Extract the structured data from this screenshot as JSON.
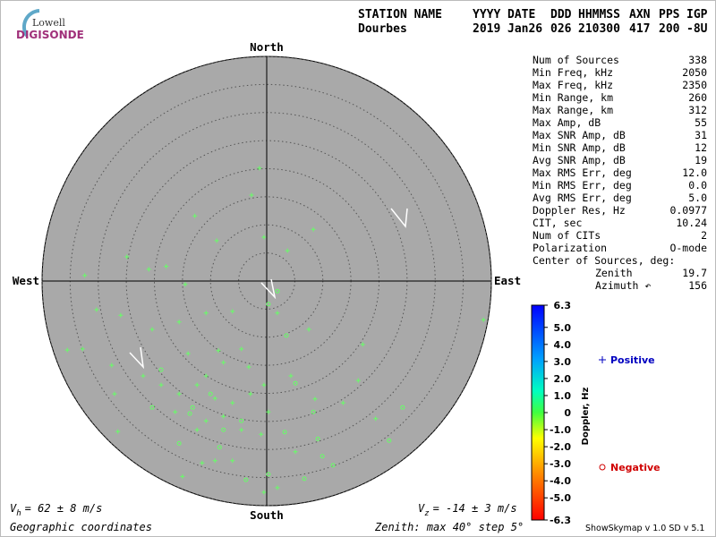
{
  "logo": {
    "top": "Lowell",
    "bottom": "DIGISONDE"
  },
  "header": {
    "columns": [
      "STATION NAME",
      "YYYY",
      "DATE",
      "DDD",
      "HHMMSS",
      "AXN",
      "PPS",
      "IGP"
    ],
    "values": [
      "Dourbes",
      "2019",
      "Jan26",
      "026",
      "210300",
      "417",
      "200",
      "-8U"
    ]
  },
  "stats": [
    [
      "Num of Sources",
      "338"
    ],
    [
      "Min Freq, kHz",
      "2050"
    ],
    [
      "Max Freq, kHz",
      "2350"
    ],
    [
      "Min Range, km",
      "260"
    ],
    [
      "Max Range, km",
      "312"
    ],
    [
      "Max Amp, dB",
      "55"
    ],
    [
      "Max SNR Amp, dB",
      "31"
    ],
    [
      "Min SNR Amp, dB",
      "12"
    ],
    [
      "Avg SNR Amp, dB",
      "19"
    ],
    [
      "Max RMS Err, deg",
      "12.0"
    ],
    [
      "Min RMS Err, deg",
      "0.0"
    ],
    [
      "Avg RMS Err, deg",
      "5.0"
    ],
    [
      "Doppler Res, Hz",
      "0.0977"
    ],
    [
      "CIT, sec",
      "10.24"
    ],
    [
      "Num of CITs",
      "2"
    ],
    [
      "Polarization",
      "O-mode"
    ]
  ],
  "center": {
    "title": "Center of Sources, deg:",
    "rows": [
      [
        "Zenith",
        "19.7"
      ],
      [
        "Azimuth ↶",
        "156"
      ]
    ]
  },
  "footer": {
    "vh_symbol": "V",
    "vh_sub": "h",
    "vh_text": "= 62 ± 8 m/s",
    "vz_symbol": "V",
    "vz_sub": "z",
    "vz_text": "= -14 ± 3 m/s",
    "coords": "Geographic coordinates",
    "zenith": "Zenith: max 40°  step 5°",
    "version": "ShowSkymap v 1.0   SD v 5.1"
  },
  "chart_data": {
    "type": "skymap",
    "directions": {
      "north": "North",
      "south": "South",
      "east": "East",
      "west": "West"
    },
    "rlim": [
      0,
      40
    ],
    "rticks": [
      5,
      10,
      15,
      20,
      25,
      30,
      35,
      40
    ],
    "colorbar": {
      "label": "Doppler, Hz",
      "lim": [
        -6.3,
        6.3
      ],
      "ticks": [
        6.3,
        {
          "value": 5,
          "label": "5.0"
        },
        {
          "value": 4,
          "label": "4.0"
        },
        {
          "value": 3,
          "label": "3.0"
        },
        {
          "value": 2,
          "label": "2.0"
        },
        {
          "value": 1,
          "label": "1.0"
        },
        0,
        {
          "value": -1,
          "label": "-1.0"
        },
        {
          "value": -2,
          "label": "-2.0"
        },
        {
          "value": -3,
          "label": "-3.0"
        },
        {
          "value": -4,
          "label": "-4.0"
        },
        {
          "value": -5,
          "label": "-5.0"
        },
        -6.3
      ]
    },
    "series": [
      {
        "name": "Positive",
        "marker": "plus",
        "color": "#66ff66",
        "legend_color": "#0000c0",
        "x": [
          -1.3,
          -2.7,
          -12.8,
          -8.9,
          -0.5,
          3.7,
          8.3,
          -24.9,
          -32.4,
          -21.0,
          -17.9,
          -14.5,
          -30.3,
          -26.0,
          -20.4,
          -15.6,
          -10.8,
          -6.1,
          1.9,
          7.5,
          -32.8,
          -35.5,
          -27.6,
          -22.0,
          -18.8,
          -15.6,
          -12.4,
          -9.2,
          -6.1,
          -2.9,
          -0.5,
          -10.8,
          -7.7,
          -4.5,
          -12.4,
          -16.3,
          -27.1,
          -26.5,
          4.3,
          8.6,
          16.3,
          13.6,
          17.1,
          19.4,
          38.6,
          -6.1,
          -9.2,
          -0.5,
          -11.5,
          -8.6,
          -4.5,
          -14.0,
          -7.7,
          -3.2,
          -10.8,
          0.3,
          -1.0,
          -15.0,
          1.9,
          5.1
        ],
        "y": [
          20.1,
          15.3,
          11.6,
          7.2,
          7.8,
          5.4,
          9.2,
          4.3,
          1.0,
          2.1,
          2.6,
          -0.6,
          -5.1,
          -6.1,
          -8.6,
          -7.3,
          -5.7,
          -5.4,
          -5.7,
          -8.6,
          -12.1,
          -12.3,
          -15.0,
          -16.9,
          -18.5,
          -20.1,
          -18.5,
          -20.9,
          -21.7,
          -20.1,
          -18.5,
          -24.9,
          -24.1,
          -26.5,
          -26.5,
          -23.3,
          -20.1,
          -26.8,
          -16.9,
          -21.0,
          -17.7,
          -21.7,
          -11.3,
          -24.5,
          -6.9,
          -32.0,
          -32.0,
          -37.6,
          -32.4,
          -12.4,
          -12.1,
          -12.9,
          -14.5,
          -15.3,
          -16.9,
          -23.3,
          -27.3,
          -34.8,
          -36.8,
          -30.4
        ]
      },
      {
        "name": "Negative",
        "marker": "circle",
        "color": "#66ff66",
        "legend_color": "#d00000",
        "x": [
          3.5,
          5.1,
          8.3,
          3.2,
          -15.6,
          -13.2,
          -8.4,
          -7.7,
          -4.5,
          9.1,
          9.9,
          11.8,
          21.8,
          24.2,
          6.7,
          -3.7,
          0.3,
          -20.4,
          -10.0,
          -13.7,
          -18.8,
          1.9,
          0.3
        ],
        "y": [
          -9.7,
          -18.2,
          -23.3,
          -26.9,
          -28.9,
          -22.5,
          -29.6,
          -26.5,
          -24.9,
          -28.1,
          -31.2,
          -32.8,
          -28.4,
          -22.5,
          -35.2,
          -35.4,
          -34.4,
          -22.5,
          -20.1,
          -23.6,
          -15.8,
          -1.8,
          -4.1
        ]
      }
    ]
  }
}
